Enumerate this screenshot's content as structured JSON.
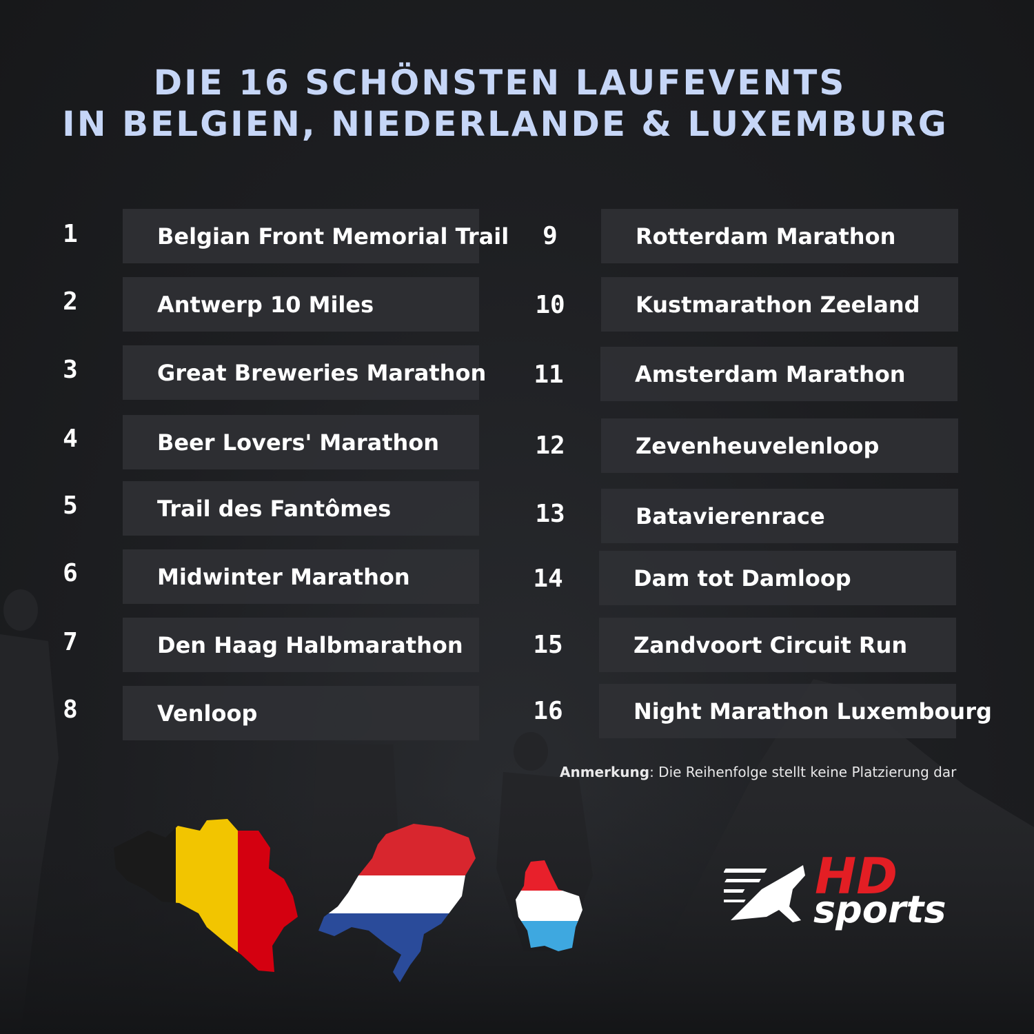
{
  "title": {
    "line1": "DIE 16 SCHÖNSTEN LAUFEVENTS",
    "line2": "IN BELGIEN, NIEDERLANDE & LUXEMBURG"
  },
  "events": [
    {
      "rank": "1",
      "name": "Belgian Front Memorial Trail"
    },
    {
      "rank": "2",
      "name": "Antwerp 10 Miles"
    },
    {
      "rank": "3",
      "name": "Great Breweries Marathon"
    },
    {
      "rank": "4",
      "name": "Beer Lovers' Marathon"
    },
    {
      "rank": "5",
      "name": "Trail des Fantômes"
    },
    {
      "rank": "6",
      "name": "Midwinter Marathon"
    },
    {
      "rank": "7",
      "name": "Den Haag Halbmarathon"
    },
    {
      "rank": "8",
      "name": "Venloop"
    },
    {
      "rank": "9",
      "name": "Rotterdam Marathon"
    },
    {
      "rank": "10",
      "name": "Kustmarathon Zeeland"
    },
    {
      "rank": "11",
      "name": "Amsterdam Marathon"
    },
    {
      "rank": "12",
      "name": "Zevenheuvelenloop"
    },
    {
      "rank": "13",
      "name": "Batavierenrace"
    },
    {
      "rank": "14",
      "name": "Dam tot Damloop"
    },
    {
      "rank": "15",
      "name": "Zandvoort Circuit Run"
    },
    {
      "rank": "16",
      "name": "Night Marathon Luxembourg"
    }
  ],
  "note": {
    "label": "Anmerkung",
    "text": ": Die Reihenfolge stellt keine Platzierung dar"
  },
  "logo": {
    "hd": "HD",
    "sports": "sports"
  },
  "colors": {
    "title": "#c6d6f7",
    "box": "#2f3034",
    "background": "#1d1e21",
    "belgium": [
      "#1a1a1a",
      "#f2c500",
      "#d40010"
    ],
    "netherlands": [
      "#d8262e",
      "#ffffff",
      "#2a4b9a"
    ],
    "luxembourg": [
      "#e8202b",
      "#ffffff",
      "#3ea8e0"
    ],
    "logo_red": "#e31e24"
  }
}
